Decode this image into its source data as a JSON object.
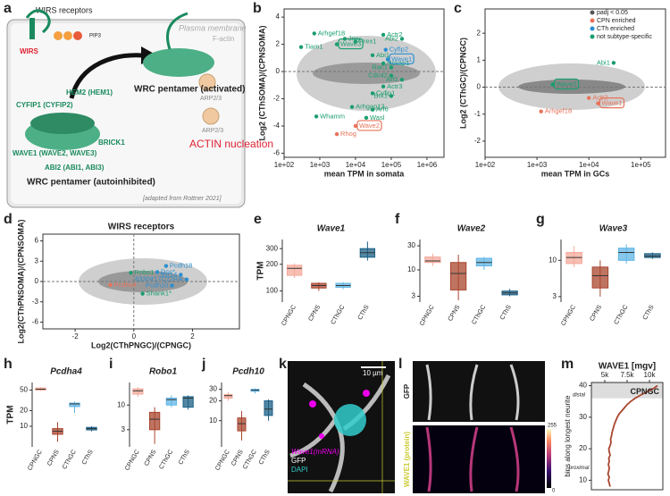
{
  "panel_a": {
    "label": "a",
    "wirs_receptors": "WIRS receptors",
    "plasma_membrane": "Plasma membrane",
    "f_actin": "F-actin",
    "wirs": "WIRS",
    "pip3": "PIP3",
    "cyfip": "CYFIP1 (CYFIP2)",
    "hem": "HEM2 (HEM1)",
    "wave": "WAVE1 (WAVE2, WAVE3)",
    "brick": "BRICK1",
    "abi": "ABI2 (ABI1, ABI3)",
    "autoinhibited": "WRC pentamer (autoinhibited)",
    "activated": "WRC pentamer (activated)",
    "arp_1": "ARP2/3",
    "arp_2": "ARP2/3",
    "actin": "ACTIN nucleation",
    "source": "[adapted from Rottner 2021]"
  },
  "chart_data": [
    {
      "label": "b",
      "type": "scatter",
      "xlabel": "mean TPM in somata",
      "ylabel": "Log2 (CThSOMA)/(CPNSOMA)",
      "xscale": "log",
      "xlim": [
        100,
        3000000
      ],
      "xticks": [
        {
          "value": 100,
          "label": "1e+02"
        },
        {
          "value": 1000,
          "label": "1e+03"
        },
        {
          "value": 10000,
          "label": "1e+04"
        },
        {
          "value": 100000,
          "label": "1e+05"
        },
        {
          "value": 1000000,
          "label": "1e+06"
        }
      ],
      "ylim": [
        -6.3,
        4.6
      ],
      "yticks": [
        -6,
        -4,
        -2,
        0,
        2,
        4
      ],
      "zero_line": true,
      "series": [
        {
          "color": "#1a9e6e",
          "labels": [
            "Tiam1",
            "Arhgef18",
            "Wave3",
            "Jmy",
            "Prex1",
            "Actr2",
            "Abi2",
            "Abi1",
            "Nckap1",
            "Rac1",
            "Cdc42",
            "Arf1",
            "Actr3",
            "Cyfip1",
            "Brk1",
            "Arf6",
            "Wasl",
            "Arhgap12",
            "Whamm"
          ],
          "x": [
            300,
            700,
            3000,
            5000,
            10000,
            60000,
            200000,
            30000,
            60000,
            100000,
            100000,
            200000,
            60000,
            30000,
            100000,
            30000,
            20000,
            8000,
            800
          ],
          "values": [
            1.8,
            2.8,
            2.0,
            2.4,
            2.2,
            2.7,
            2.4,
            1.2,
            0.6,
            0.3,
            -0.3,
            -0.6,
            -1.1,
            -1.6,
            -1.8,
            -2.8,
            -3.4,
            -2.6,
            -3.3
          ],
          "boxed": [
            false,
            false,
            true,
            false,
            false,
            false,
            false,
            false,
            false,
            false,
            false,
            false,
            false,
            false,
            false,
            false,
            false,
            false,
            false
          ]
        },
        {
          "color": "#2a8fd0",
          "labels": [
            "Cyfip2",
            "Wave1"
          ],
          "x": [
            70000,
            80000
          ],
          "values": [
            1.6,
            0.9
          ],
          "boxed": [
            false,
            true
          ]
        },
        {
          "color": "#e8735a",
          "labels": [
            "Rhog",
            "Wave2"
          ],
          "x": [
            3000,
            10000
          ],
          "values": [
            -4.6,
            -4.0
          ],
          "boxed": [
            false,
            true
          ]
        }
      ]
    },
    {
      "label": "c",
      "type": "scatter",
      "xlabel": "mean TPM in GCs",
      "ylabel": "Log2 (CThGC)/(CPNGC)",
      "xscale": "log",
      "xlim": [
        100,
        300000
      ],
      "xticks": [
        {
          "value": 100,
          "label": "1e+02"
        },
        {
          "value": 1000,
          "label": "1e+03"
        },
        {
          "value": 10000,
          "label": "1e+04"
        },
        {
          "value": 100000,
          "label": "1e+05"
        }
      ],
      "ylim": [
        -2.6,
        2.9
      ],
      "yticks": [
        -2,
        -1,
        0,
        1,
        2
      ],
      "zero_line": true,
      "legend": [
        {
          "name": "padj < 0.05",
          "color": "#555555"
        },
        {
          "name": "CPN enriched",
          "color": "#e8735a"
        },
        {
          "name": "CTh enriched",
          "color": "#2a8fd0"
        },
        {
          "name": "not subtype-specific",
          "color": "#1a9e6e"
        }
      ],
      "series": [
        {
          "color": "#1a9e6e",
          "labels": [
            "Wave2",
            "Abi1"
          ],
          "x": [
            2000,
            30000
          ],
          "values": [
            0.1,
            0.9
          ],
          "boxed": [
            true,
            false
          ]
        },
        {
          "color": "#e8735a",
          "labels": [
            "Arhgef18",
            "Actr2",
            "Wave1"
          ],
          "x": [
            1200,
            10000,
            15000
          ],
          "values": [
            -0.9,
            -0.4,
            -0.6
          ],
          "boxed": [
            false,
            false,
            true
          ]
        }
      ]
    },
    {
      "label": "d",
      "type": "scatter",
      "title": "WIRS receptors",
      "xlabel": "Log2(CThPNGC)/(CPNGC)",
      "ylabel": "Log2(CThPNSOMA)/(CPNSOMA)",
      "xlim": [
        -3.1,
        3.6
      ],
      "xticks": [
        -2,
        0,
        2
      ],
      "ylim": [
        -7,
        7
      ],
      "yticks": [
        -6,
        -3,
        0,
        3,
        6
      ],
      "zero_line": true,
      "series": [
        {
          "color": "#1a9e6e",
          "labels": [
            "Robo1",
            "Shank1*"
          ],
          "x": [
            -0.1,
            0.3
          ],
          "values": [
            1.3,
            -1.8
          ],
          "boxed": [
            false,
            false
          ]
        },
        {
          "color": "#2a8fd0",
          "labels": [
            "Dcc*",
            "Pcdh18",
            "Syt14",
            "8330417C22Rik",
            "Pcdh10"
          ],
          "x": [
            0.8,
            1.1,
            1.6,
            1.8,
            1.3
          ],
          "values": [
            1.4,
            2.3,
            1.0,
            0.3,
            -0.6
          ],
          "boxed": [
            false,
            false,
            false,
            false,
            false
          ]
        },
        {
          "color": "#e8735a",
          "labels": [
            "Pcdha4"
          ],
          "x": [
            -0.8
          ],
          "values": [
            -0.5
          ],
          "boxed": [
            false
          ]
        }
      ]
    },
    {
      "label": "e",
      "type": "box",
      "title": "Wave1",
      "ylabel": "TPM",
      "yscale": "log",
      "ylim": [
        75,
        380
      ],
      "yticks": [
        100,
        200,
        300
      ],
      "categories": [
        "CPNGC",
        "CPNS",
        "CThGC",
        "CThS"
      ],
      "colors": [
        "#f4a99a",
        "#a9452d",
        "#5fb6e6",
        "#1a5f86"
      ],
      "boxes": [
        {
          "whislo": 140,
          "q1": 150,
          "median": 180,
          "q3": 195,
          "whishi": 205
        },
        {
          "whislo": 100,
          "q1": 108,
          "median": 115,
          "q3": 122,
          "whishi": 125
        },
        {
          "whislo": 105,
          "q1": 110,
          "median": 115,
          "q3": 122,
          "whishi": 125
        },
        {
          "whislo": 220,
          "q1": 240,
          "median": 270,
          "q3": 300,
          "whishi": 360
        }
      ]
    },
    {
      "label": "f",
      "type": "box",
      "title": "Wave2",
      "yscale": "log",
      "ylim": [
        2.3,
        40
      ],
      "yticks": [
        3,
        10,
        30
      ],
      "categories": [
        "CPNGC",
        "CPNS",
        "CThGC",
        "CThS"
      ],
      "colors": [
        "#f4a99a",
        "#a9452d",
        "#5fb6e6",
        "#1a5f86"
      ],
      "boxes": [
        {
          "whislo": 12,
          "q1": 14,
          "median": 15,
          "q3": 18,
          "whishi": 21
        },
        {
          "whislo": 2.5,
          "q1": 4,
          "median": 8.5,
          "q3": 14,
          "whishi": 20
        },
        {
          "whislo": 10,
          "q1": 12,
          "median": 14,
          "q3": 17,
          "whishi": 18
        },
        {
          "whislo": 3,
          "q1": 3.2,
          "median": 3.5,
          "q3": 3.8,
          "whishi": 4.2
        }
      ]
    },
    {
      "label": "g",
      "type": "box",
      "title": "Wave3",
      "yscale": "log",
      "ylim": [
        2.5,
        20
      ],
      "yticks": [
        3,
        10
      ],
      "categories": [
        "CPNGC",
        "CPNS",
        "CThGC",
        "CThS"
      ],
      "colors": [
        "#f4a99a",
        "#a9452d",
        "#5fb6e6",
        "#1a5f86"
      ],
      "boxes": [
        {
          "whislo": 8,
          "q1": 9,
          "median": 11,
          "q3": 13,
          "whishi": 16
        },
        {
          "whislo": 3,
          "q1": 4,
          "median": 6,
          "q3": 8,
          "whishi": 10
        },
        {
          "whislo": 9,
          "q1": 10,
          "median": 13,
          "q3": 15,
          "whishi": 17
        },
        {
          "whislo": 10.5,
          "q1": 11,
          "median": 11.5,
          "q3": 12.5,
          "whishi": 13
        }
      ]
    },
    {
      "label": "h",
      "type": "box",
      "title": "Pcdha4",
      "ylabel": "TPM",
      "yscale": "log",
      "ylim": [
        4,
        70
      ],
      "yticks": [
        10,
        20,
        50
      ],
      "categories": [
        "CPNGC",
        "CPNS",
        "CThGC",
        "CThS"
      ],
      "colors": [
        "#f4a99a",
        "#a9452d",
        "#5fb6e6",
        "#1a5f86"
      ],
      "boxes": [
        {
          "whislo": 48,
          "q1": 50,
          "median": 52,
          "q3": 55,
          "whishi": 57
        },
        {
          "whislo": 5,
          "q1": 7,
          "median": 8,
          "q3": 9,
          "whishi": 12
        },
        {
          "whislo": 18,
          "q1": 24,
          "median": 27,
          "q3": 28,
          "whishi": 30
        },
        {
          "whislo": 8,
          "q1": 8.5,
          "median": 9,
          "q3": 9.5,
          "whishi": 10
        }
      ]
    },
    {
      "label": "i",
      "type": "box",
      "title": "Robo1",
      "yscale": "log",
      "ylim": [
        1.3,
        30
      ],
      "yticks": [
        3,
        10
      ],
      "categories": [
        "CPNGC",
        "CPNS",
        "CThGC",
        "CThS"
      ],
      "colors": [
        "#f4a99a",
        "#a9452d",
        "#5fb6e6",
        "#1a5f86"
      ],
      "boxes": [
        {
          "whislo": 15,
          "q1": 17,
          "median": 20,
          "q3": 22,
          "whishi": 24
        },
        {
          "whislo": 1.5,
          "q1": 3,
          "median": 5,
          "q3": 7,
          "whishi": 9
        },
        {
          "whislo": 9,
          "q1": 10,
          "median": 13,
          "q3": 14,
          "whishi": 16
        },
        {
          "whislo": 8,
          "q1": 9,
          "median": 14,
          "q3": 15,
          "whishi": 16
        }
      ]
    },
    {
      "label": "j",
      "type": "box",
      "title": "Pcdh10",
      "yscale": "log",
      "ylim": [
        4,
        38
      ],
      "yticks": [
        10,
        20,
        30
      ],
      "categories": [
        "CPNGC",
        "CPNS",
        "CThGC",
        "CThS"
      ],
      "colors": [
        "#f4a99a",
        "#a9452d",
        "#5fb6e6",
        "#1a5f86"
      ],
      "boxes": [
        {
          "whislo": 20,
          "q1": 22,
          "median": 24,
          "q3": 25,
          "whishi": 27
        },
        {
          "whislo": 5,
          "q1": 7,
          "median": 9,
          "q3": 11,
          "whishi": 14
        },
        {
          "whislo": 26,
          "q1": 28,
          "median": 29,
          "q3": 30,
          "whishi": 31
        },
        {
          "whislo": 10,
          "q1": 12,
          "median": 15,
          "q3": 20,
          "whishi": 21
        }
      ]
    },
    {
      "label": "m",
      "type": "line",
      "title": "WAVE1 [mgv]",
      "ylabel": "bins along longest neurite",
      "annotation_top": "distal",
      "annotation_bottom": "proximal",
      "annotation_group": "CPNGC",
      "color": "#a9452d",
      "xlim": [
        3500,
        11500
      ],
      "xticks": [
        {
          "value": 5000,
          "label": "5k"
        },
        {
          "value": 7500,
          "label": "7.5k"
        },
        {
          "value": 10000,
          "label": "10k"
        }
      ],
      "ylim": [
        7,
        41
      ],
      "yticks": [
        10,
        20,
        30,
        40
      ],
      "y": [
        8,
        9,
        10,
        11,
        12,
        13,
        14,
        15,
        16,
        17,
        18,
        19,
        20,
        21,
        22,
        23,
        24,
        25,
        26,
        27,
        28,
        29,
        30,
        31,
        32,
        33,
        34,
        35,
        36,
        37,
        38,
        39,
        40
      ],
      "values": [
        5600,
        5500,
        5400,
        5500,
        5350,
        5450,
        5500,
        5400,
        5500,
        5450,
        5600,
        5500,
        5450,
        5600,
        5700,
        5650,
        5750,
        5800,
        5900,
        6000,
        6100,
        6250,
        6400,
        6600,
        6900,
        7200,
        7500,
        7900,
        8400,
        9000,
        9700,
        10400,
        10900
      ]
    }
  ],
  "panel_k": {
    "label": "k",
    "scale_bar": "10 µm",
    "mrna": "Wave1(mRNA)",
    "gfp": "GFP",
    "dapi": "DAPI"
  },
  "panel_l": {
    "label": "l",
    "gfp": "GFP",
    "protein": "WAVE1 (protein)",
    "cbar_max": "255",
    "cbar_min": "0"
  }
}
